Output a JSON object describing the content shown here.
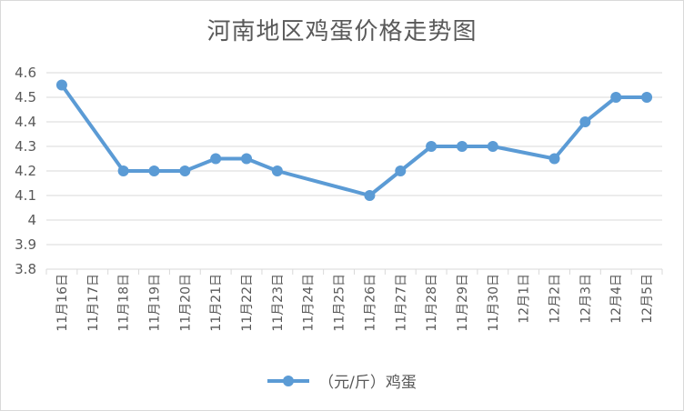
{
  "colors": {
    "series": "#5b9bd5",
    "grid": "#d9d9d9",
    "text": "#595959"
  },
  "chart_data": {
    "type": "line",
    "title": "河南地区鸡蛋价格走势图",
    "xlabel": "",
    "ylabel": "",
    "ylim": [
      3.8,
      4.6
    ],
    "yticks": [
      "4.6",
      "4.5",
      "4.4",
      "4.3",
      "4.2",
      "4.1",
      "4",
      "3.9",
      "3.8"
    ],
    "grid": true,
    "legend_position": "bottom",
    "categories": [
      "11月16日",
      "11月17日",
      "11月18日",
      "11月19日",
      "11月20日",
      "11月21日",
      "11月22日",
      "11月23日",
      "11月24日",
      "11月25日",
      "11月26日",
      "11月27日",
      "11月28日",
      "11月29日",
      "11月30日",
      "12月1日",
      "12月2日",
      "12月3日",
      "12月4日",
      "12月5日"
    ],
    "series": [
      {
        "name": "（元/斤）鸡蛋",
        "values": [
          4.55,
          null,
          4.2,
          4.2,
          4.2,
          4.25,
          4.25,
          4.2,
          null,
          null,
          4.1,
          4.2,
          4.3,
          4.3,
          4.3,
          null,
          4.25,
          4.4,
          4.5,
          4.5
        ]
      }
    ]
  }
}
